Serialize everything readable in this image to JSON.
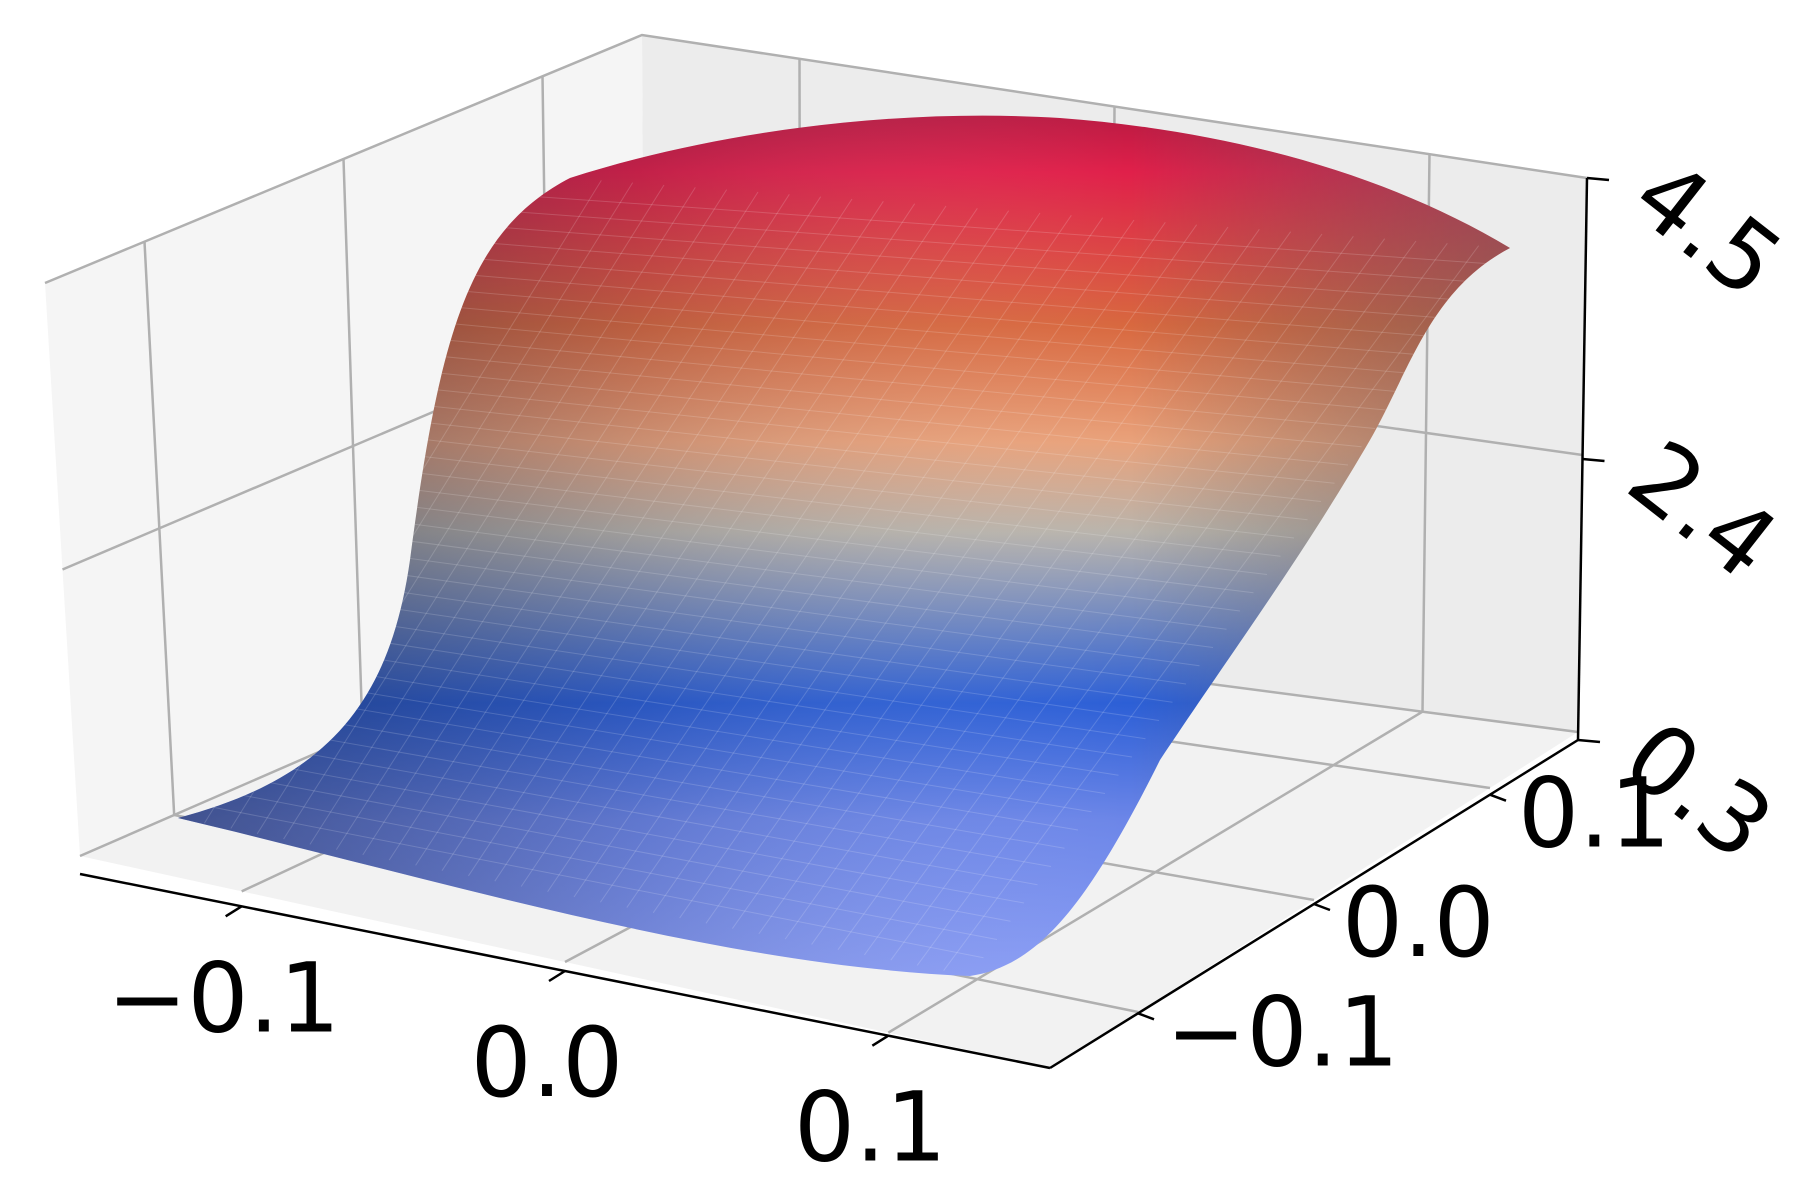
{
  "chart_data": {
    "type": "surface3d",
    "title": "",
    "xlabel": "",
    "ylabel": "",
    "zlabel": "",
    "grid": true,
    "colormap": [
      "#2f4172",
      "#2c5fd6",
      "#8ea0f7",
      "#b9b4ac",
      "#e48759",
      "#d8683f",
      "#e0204a",
      "#8a3f47"
    ],
    "xlim": [
      -0.15,
      0.15
    ],
    "ylim": [
      -0.15,
      0.15
    ],
    "zlim": [
      0.3,
      4.5
    ],
    "x_ticks": [
      "−0.1",
      "0.0",
      "0.1"
    ],
    "y_ticks": [
      "−0.1",
      "0.0",
      "0.1"
    ],
    "z_ticks": [
      "0.3",
      "2.4",
      "4.5"
    ],
    "x_tick_values": [
      -0.1,
      0.0,
      0.1
    ],
    "y_tick_values": [
      -0.1,
      0.0,
      0.1
    ],
    "z_tick_values": [
      0.3,
      2.4,
      4.5
    ],
    "surface_shape": "sigmoid step rising along y from about 0.4 to about 4.4"
  }
}
